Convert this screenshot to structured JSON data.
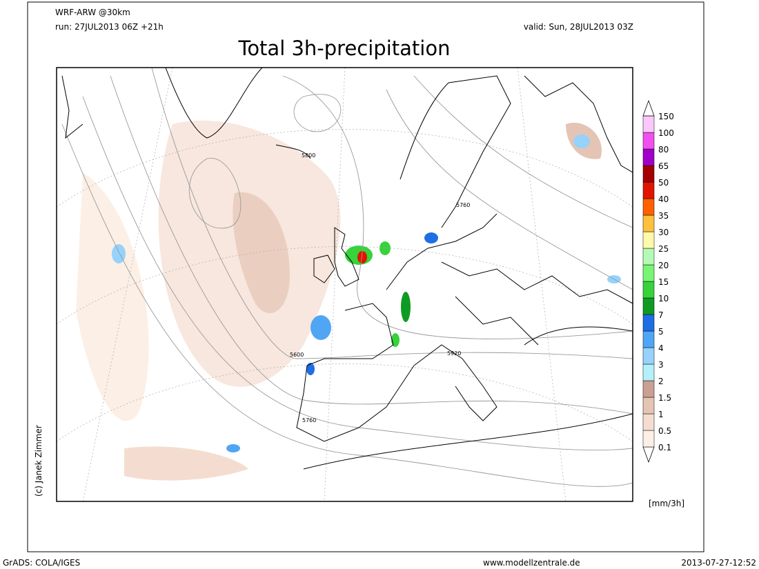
{
  "header": {
    "model": "WRF-ARW @30km",
    "run": "run: 27JUL2013 06Z +21h",
    "valid": "valid: Sun, 28JUL2013 03Z",
    "title": "Total 3h-precipitation"
  },
  "map": {
    "contour_labels": [
      "5800",
      "5760",
      "5600",
      "5760",
      "5920"
    ]
  },
  "colorbar": {
    "levels": [
      0.1,
      0.5,
      1,
      1.5,
      2,
      3,
      4,
      5,
      7,
      10,
      15,
      20,
      25,
      30,
      35,
      40,
      50,
      65,
      80,
      100,
      150
    ],
    "colors": [
      "#fcefe6",
      "#f4ddd0",
      "#e4c4b4",
      "#c9a092",
      "#b4f0fa",
      "#96d2fa",
      "#50a5f5",
      "#1e6ee6",
      "#0f9b23",
      "#37d23c",
      "#78f573",
      "#b4fab4",
      "#fffaaa",
      "#ffc03c",
      "#ff6000",
      "#e11400",
      "#a50000",
      "#a000c8",
      "#f050f0",
      "#fac8fa"
    ],
    "unit": "[mm/3h]"
  },
  "credit": "(c) Janek Zimmer",
  "footer": {
    "left": "GrADS: COLA/IGES",
    "center": "www.modellzentrale.de",
    "right": "2013-07-27-12:52"
  }
}
